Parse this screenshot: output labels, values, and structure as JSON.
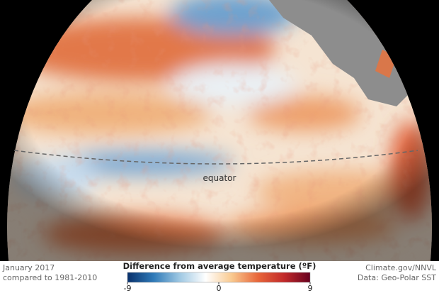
{
  "map": {
    "label": "equator"
  },
  "colorbar": {
    "title": "Difference from average temperature (ºF)",
    "range": [
      -9,
      9
    ],
    "ticks": [
      -9,
      0,
      9
    ],
    "colors": [
      "#08306b",
      "#2f7ab8",
      "#9fc8e3",
      "#ffffff",
      "#f9c98f",
      "#e8663a",
      "#c22a2a",
      "#67001f"
    ]
  },
  "footer": {
    "date": "January 2017",
    "baseline": "compared to 1981-2010",
    "credit": "Climate.gov/NNVL",
    "source": "Data: Geo-Polar SST"
  }
}
